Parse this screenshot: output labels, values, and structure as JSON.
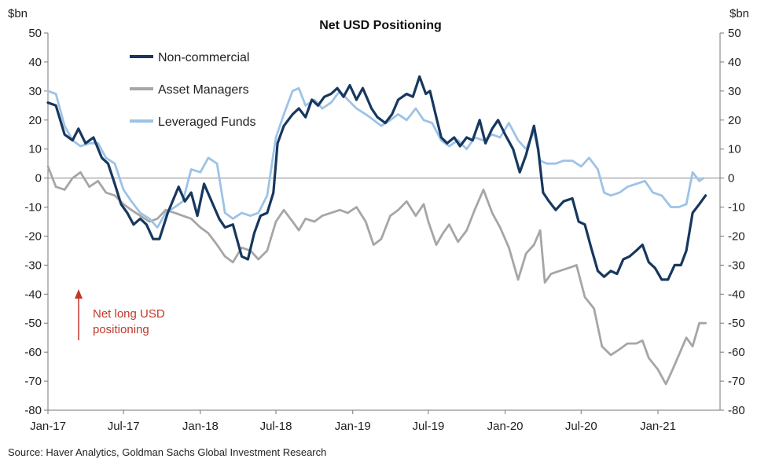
{
  "chart_data": {
    "type": "line",
    "title": "Net USD Positioning",
    "left_unit": "$bn",
    "right_unit": "$bn",
    "ylim": [
      -80,
      50
    ],
    "y_ticks": [
      50,
      40,
      30,
      20,
      10,
      0,
      -10,
      -20,
      -30,
      -40,
      -50,
      -60,
      -70,
      -80
    ],
    "x_range": [
      "2017-01-01",
      "2021-06-15"
    ],
    "x_ticks": [
      {
        "label": "Jan-17",
        "date": "2017-01-01"
      },
      {
        "label": "Jul-17",
        "date": "2017-07-01"
      },
      {
        "label": "Jan-18",
        "date": "2018-01-01"
      },
      {
        "label": "Jul-18",
        "date": "2018-07-01"
      },
      {
        "label": "Jan-19",
        "date": "2019-01-01"
      },
      {
        "label": "Jul-19",
        "date": "2019-07-01"
      },
      {
        "label": "Jan-20",
        "date": "2020-01-01"
      },
      {
        "label": "Jul-20",
        "date": "2020-07-01"
      },
      {
        "label": "Jan-21",
        "date": "2021-01-01"
      }
    ],
    "legend_position": "top-left",
    "grid": false,
    "series": [
      {
        "name": "Non-commercial",
        "color": "#17375e",
        "points": [
          [
            "2017-01-01",
            26
          ],
          [
            "2017-01-20",
            25
          ],
          [
            "2017-02-10",
            15
          ],
          [
            "2017-03-01",
            13
          ],
          [
            "2017-03-15",
            17
          ],
          [
            "2017-04-01",
            12
          ],
          [
            "2017-04-20",
            14
          ],
          [
            "2017-05-10",
            7
          ],
          [
            "2017-05-25",
            5
          ],
          [
            "2017-06-10",
            -2
          ],
          [
            "2017-06-25",
            -9
          ],
          [
            "2017-07-10",
            -12
          ],
          [
            "2017-07-25",
            -16
          ],
          [
            "2017-08-10",
            -14
          ],
          [
            "2017-08-25",
            -16
          ],
          [
            "2017-09-10",
            -21
          ],
          [
            "2017-09-25",
            -21
          ],
          [
            "2017-10-15",
            -12
          ],
          [
            "2017-11-10",
            -3
          ],
          [
            "2017-11-25",
            -8
          ],
          [
            "2017-12-10",
            -5
          ],
          [
            "2017-12-25",
            -13
          ],
          [
            "2018-01-10",
            -2
          ],
          [
            "2018-01-25",
            -7
          ],
          [
            "2018-02-15",
            -14
          ],
          [
            "2018-03-01",
            -17
          ],
          [
            "2018-03-20",
            -16
          ],
          [
            "2018-04-10",
            -27
          ],
          [
            "2018-04-25",
            -28
          ],
          [
            "2018-05-10",
            -19
          ],
          [
            "2018-05-25",
            -13
          ],
          [
            "2018-06-10",
            -12
          ],
          [
            "2018-06-25",
            -5
          ],
          [
            "2018-07-05",
            12
          ],
          [
            "2018-07-20",
            18
          ],
          [
            "2018-08-10",
            22
          ],
          [
            "2018-08-25",
            24
          ],
          [
            "2018-09-10",
            21
          ],
          [
            "2018-09-25",
            27
          ],
          [
            "2018-10-10",
            25
          ],
          [
            "2018-10-25",
            28
          ],
          [
            "2018-11-10",
            29
          ],
          [
            "2018-11-25",
            31
          ],
          [
            "2018-12-10",
            28
          ],
          [
            "2018-12-25",
            32
          ],
          [
            "2019-01-10",
            27
          ],
          [
            "2019-01-25",
            31
          ],
          [
            "2019-02-15",
            24
          ],
          [
            "2019-03-01",
            21
          ],
          [
            "2019-03-20",
            19
          ],
          [
            "2019-04-05",
            22
          ],
          [
            "2019-04-20",
            27
          ],
          [
            "2019-05-10",
            29
          ],
          [
            "2019-05-25",
            28
          ],
          [
            "2019-06-10",
            35
          ],
          [
            "2019-06-25",
            29
          ],
          [
            "2019-07-05",
            30
          ],
          [
            "2019-07-20",
            21
          ],
          [
            "2019-08-01",
            14
          ],
          [
            "2019-08-15",
            12
          ],
          [
            "2019-09-01",
            14
          ],
          [
            "2019-09-15",
            11
          ],
          [
            "2019-10-01",
            14
          ],
          [
            "2019-10-15",
            13
          ],
          [
            "2019-11-01",
            20
          ],
          [
            "2019-11-15",
            12
          ],
          [
            "2019-12-01",
            17
          ],
          [
            "2019-12-15",
            20
          ],
          [
            "2020-01-01",
            15
          ],
          [
            "2020-01-20",
            10
          ],
          [
            "2020-02-05",
            2
          ],
          [
            "2020-02-20",
            8
          ],
          [
            "2020-03-10",
            18
          ],
          [
            "2020-03-20",
            10
          ],
          [
            "2020-04-01",
            -5
          ],
          [
            "2020-04-15",
            -8
          ],
          [
            "2020-05-01",
            -11
          ],
          [
            "2020-05-20",
            -8
          ],
          [
            "2020-06-10",
            -7
          ],
          [
            "2020-06-25",
            -15
          ],
          [
            "2020-07-10",
            -16
          ],
          [
            "2020-07-25",
            -24
          ],
          [
            "2020-08-10",
            -32
          ],
          [
            "2020-08-25",
            -34
          ],
          [
            "2020-09-10",
            -32
          ],
          [
            "2020-09-25",
            -33
          ],
          [
            "2020-10-10",
            -28
          ],
          [
            "2020-10-25",
            -27
          ],
          [
            "2020-11-10",
            -25
          ],
          [
            "2020-11-25",
            -23
          ],
          [
            "2020-12-10",
            -29
          ],
          [
            "2020-12-25",
            -31
          ],
          [
            "2021-01-10",
            -35
          ],
          [
            "2021-01-25",
            -35
          ],
          [
            "2021-02-10",
            -30
          ],
          [
            "2021-02-25",
            -30
          ],
          [
            "2021-03-10",
            -25
          ],
          [
            "2021-03-25",
            -12
          ],
          [
            "2021-04-10",
            -9
          ],
          [
            "2021-04-25",
            -6
          ]
        ]
      },
      {
        "name": "Asset Managers",
        "color": "#a6a6a6",
        "points": [
          [
            "2017-01-01",
            4
          ],
          [
            "2017-01-20",
            -3
          ],
          [
            "2017-02-10",
            -4
          ],
          [
            "2017-03-01",
            0
          ],
          [
            "2017-03-20",
            2
          ],
          [
            "2017-04-10",
            -3
          ],
          [
            "2017-05-01",
            -1
          ],
          [
            "2017-05-20",
            -5
          ],
          [
            "2017-06-10",
            -6
          ],
          [
            "2017-07-01",
            -9
          ],
          [
            "2017-07-20",
            -11
          ],
          [
            "2017-08-10",
            -13
          ],
          [
            "2017-09-01",
            -15
          ],
          [
            "2017-09-20",
            -14
          ],
          [
            "2017-10-10",
            -11
          ],
          [
            "2017-11-01",
            -12
          ],
          [
            "2017-11-20",
            -13
          ],
          [
            "2017-12-10",
            -14
          ],
          [
            "2018-01-01",
            -17
          ],
          [
            "2018-01-20",
            -19
          ],
          [
            "2018-02-10",
            -23
          ],
          [
            "2018-03-01",
            -27
          ],
          [
            "2018-03-20",
            -29
          ],
          [
            "2018-04-10",
            -24
          ],
          [
            "2018-05-01",
            -25
          ],
          [
            "2018-05-20",
            -28
          ],
          [
            "2018-06-10",
            -25
          ],
          [
            "2018-07-01",
            -15
          ],
          [
            "2018-07-20",
            -11
          ],
          [
            "2018-08-10",
            -15
          ],
          [
            "2018-08-25",
            -18
          ],
          [
            "2018-09-10",
            -14
          ],
          [
            "2018-10-01",
            -15
          ],
          [
            "2018-10-20",
            -13
          ],
          [
            "2018-11-10",
            -12
          ],
          [
            "2018-12-01",
            -11
          ],
          [
            "2018-12-20",
            -12
          ],
          [
            "2019-01-10",
            -10
          ],
          [
            "2019-02-01",
            -15
          ],
          [
            "2019-02-20",
            -23
          ],
          [
            "2019-03-10",
            -21
          ],
          [
            "2019-04-01",
            -13
          ],
          [
            "2019-04-20",
            -11
          ],
          [
            "2019-05-10",
            -8
          ],
          [
            "2019-06-01",
            -13
          ],
          [
            "2019-06-20",
            -9
          ],
          [
            "2019-07-01",
            -15
          ],
          [
            "2019-07-20",
            -23
          ],
          [
            "2019-08-05",
            -19
          ],
          [
            "2019-08-20",
            -16
          ],
          [
            "2019-09-10",
            -22
          ],
          [
            "2019-10-01",
            -18
          ],
          [
            "2019-10-20",
            -11
          ],
          [
            "2019-11-10",
            -4
          ],
          [
            "2019-12-01",
            -12
          ],
          [
            "2019-12-20",
            -17
          ],
          [
            "2020-01-10",
            -24
          ],
          [
            "2020-02-01",
            -35
          ],
          [
            "2020-02-20",
            -26
          ],
          [
            "2020-03-10",
            -23
          ],
          [
            "2020-03-25",
            -18
          ],
          [
            "2020-04-05",
            -36
          ],
          [
            "2020-04-20",
            -33
          ],
          [
            "2020-05-10",
            -32
          ],
          [
            "2020-06-01",
            -31
          ],
          [
            "2020-06-20",
            -30
          ],
          [
            "2020-07-10",
            -41
          ],
          [
            "2020-08-01",
            -45
          ],
          [
            "2020-08-20",
            -58
          ],
          [
            "2020-09-10",
            -61
          ],
          [
            "2020-10-01",
            -59
          ],
          [
            "2020-10-20",
            -57
          ],
          [
            "2020-11-10",
            -57
          ],
          [
            "2020-11-25",
            -56
          ],
          [
            "2020-12-10",
            -62
          ],
          [
            "2021-01-01",
            -66
          ],
          [
            "2021-01-20",
            -71
          ],
          [
            "2021-02-05",
            -66
          ],
          [
            "2021-02-20",
            -61
          ],
          [
            "2021-03-10",
            -55
          ],
          [
            "2021-03-25",
            -58
          ],
          [
            "2021-04-10",
            -50
          ],
          [
            "2021-04-25",
            -50
          ]
        ]
      },
      {
        "name": "Leveraged Funds",
        "color": "#9dc3e6",
        "points": [
          [
            "2017-01-01",
            30
          ],
          [
            "2017-01-20",
            29
          ],
          [
            "2017-02-10",
            18
          ],
          [
            "2017-03-01",
            13
          ],
          [
            "2017-03-20",
            11
          ],
          [
            "2017-04-10",
            12
          ],
          [
            "2017-05-01",
            12
          ],
          [
            "2017-05-20",
            7
          ],
          [
            "2017-06-10",
            5
          ],
          [
            "2017-07-01",
            -4
          ],
          [
            "2017-07-20",
            -8
          ],
          [
            "2017-08-10",
            -12
          ],
          [
            "2017-09-01",
            -14
          ],
          [
            "2017-09-20",
            -17
          ],
          [
            "2017-10-10",
            -12
          ],
          [
            "2017-11-01",
            -10
          ],
          [
            "2017-11-20",
            -8
          ],
          [
            "2017-12-10",
            3
          ],
          [
            "2018-01-01",
            2
          ],
          [
            "2018-01-20",
            7
          ],
          [
            "2018-02-10",
            5
          ],
          [
            "2018-03-01",
            -12
          ],
          [
            "2018-03-20",
            -14
          ],
          [
            "2018-04-10",
            -12
          ],
          [
            "2018-05-01",
            -13
          ],
          [
            "2018-05-20",
            -12
          ],
          [
            "2018-06-10",
            -6
          ],
          [
            "2018-07-01",
            14
          ],
          [
            "2018-07-20",
            22
          ],
          [
            "2018-08-10",
            30
          ],
          [
            "2018-08-25",
            31
          ],
          [
            "2018-09-10",
            25
          ],
          [
            "2018-10-01",
            27
          ],
          [
            "2018-10-20",
            24
          ],
          [
            "2018-11-10",
            26
          ],
          [
            "2018-12-01",
            30
          ],
          [
            "2018-12-20",
            27
          ],
          [
            "2019-01-10",
            24
          ],
          [
            "2019-02-01",
            22
          ],
          [
            "2019-02-20",
            20
          ],
          [
            "2019-03-10",
            18
          ],
          [
            "2019-04-01",
            20
          ],
          [
            "2019-04-20",
            22
          ],
          [
            "2019-05-10",
            20
          ],
          [
            "2019-06-01",
            24
          ],
          [
            "2019-06-20",
            20
          ],
          [
            "2019-07-10",
            19
          ],
          [
            "2019-08-01",
            13
          ],
          [
            "2019-08-20",
            11
          ],
          [
            "2019-09-10",
            13
          ],
          [
            "2019-10-01",
            10
          ],
          [
            "2019-10-20",
            14
          ],
          [
            "2019-11-10",
            13
          ],
          [
            "2019-12-01",
            15
          ],
          [
            "2019-12-20",
            14
          ],
          [
            "2020-01-10",
            19
          ],
          [
            "2020-02-01",
            13
          ],
          [
            "2020-02-20",
            10
          ],
          [
            "2020-03-10",
            16
          ],
          [
            "2020-03-25",
            6
          ],
          [
            "2020-04-10",
            5
          ],
          [
            "2020-05-01",
            5
          ],
          [
            "2020-05-20",
            6
          ],
          [
            "2020-06-10",
            6
          ],
          [
            "2020-07-01",
            4
          ],
          [
            "2020-07-20",
            7
          ],
          [
            "2020-08-10",
            3
          ],
          [
            "2020-08-25",
            -5
          ],
          [
            "2020-09-10",
            -6
          ],
          [
            "2020-10-01",
            -5
          ],
          [
            "2020-10-20",
            -3
          ],
          [
            "2020-11-10",
            -2
          ],
          [
            "2020-12-01",
            -1
          ],
          [
            "2020-12-20",
            -5
          ],
          [
            "2021-01-10",
            -6
          ],
          [
            "2021-02-01",
            -10
          ],
          [
            "2021-02-20",
            -10
          ],
          [
            "2021-03-10",
            -9
          ],
          [
            "2021-03-25",
            2
          ],
          [
            "2021-04-10",
            -1
          ],
          [
            "2021-04-20",
            0
          ]
        ]
      }
    ],
    "annotation": {
      "lines": [
        "Net long USD",
        "positioning"
      ],
      "color": "#c0392b"
    },
    "source": "Source: Haver Analytics, Goldman Sachs Global Investment Research"
  }
}
